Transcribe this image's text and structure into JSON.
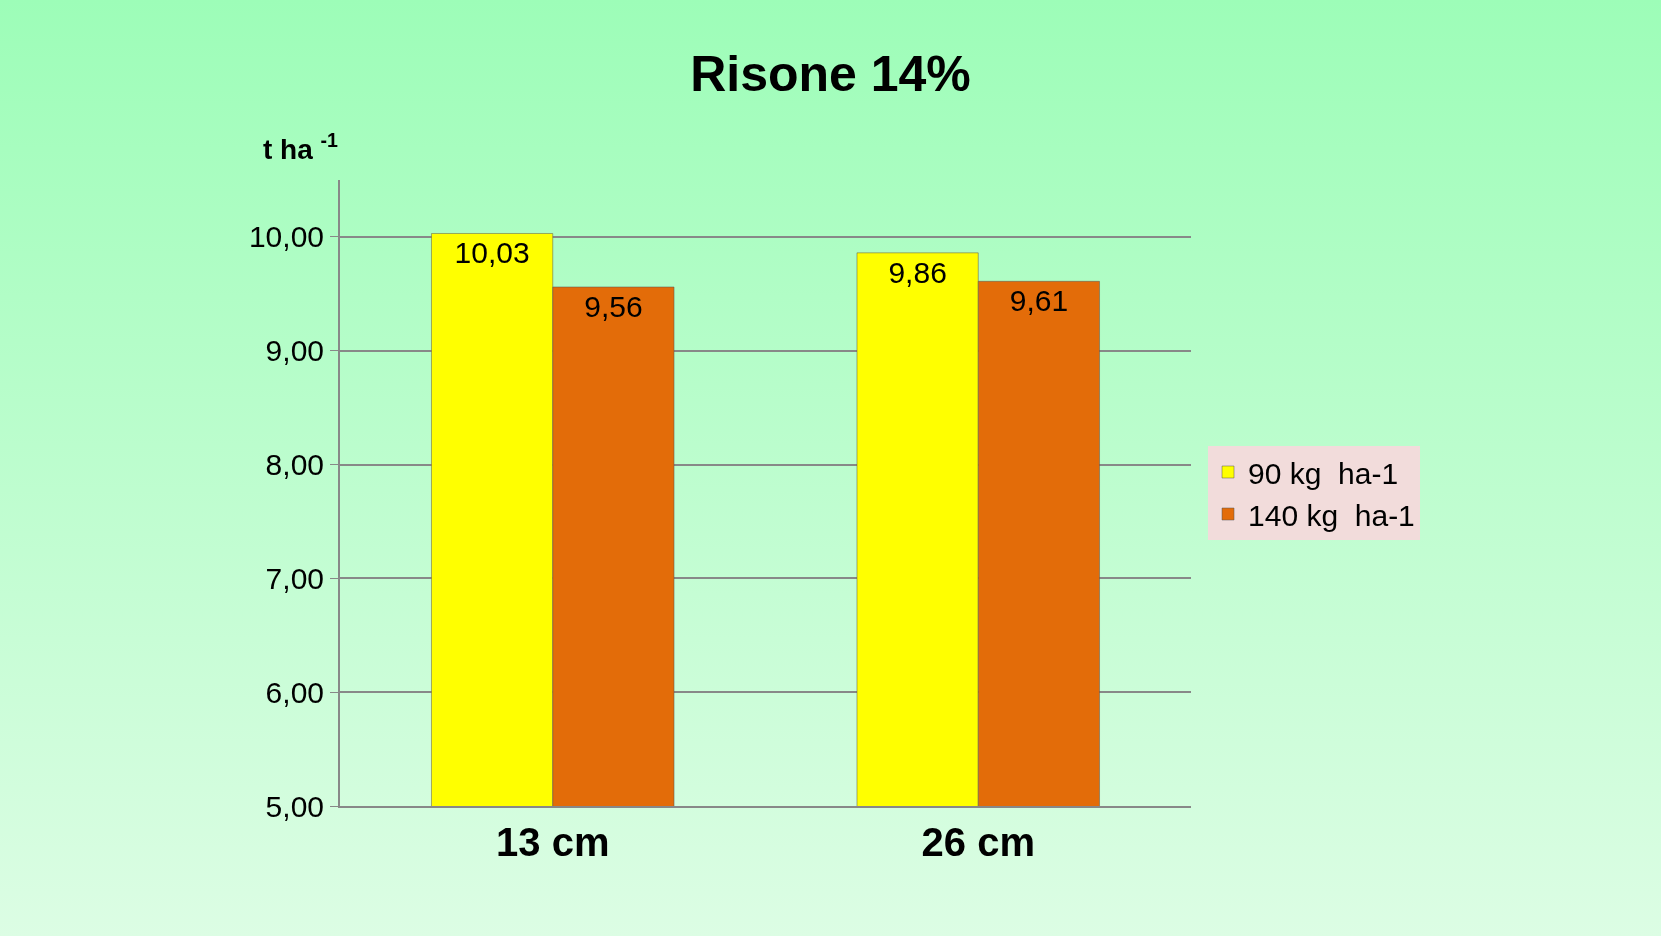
{
  "chart_data": {
    "type": "bar",
    "title": "Risone 14%",
    "ylabel": "t ha $^{-1}$",
    "categories": [
      "13 cm",
      "26 cm"
    ],
    "series": [
      {
        "name": "90 kg  ha-1",
        "color": "#ffff00",
        "values": [
          10.03,
          9.86
        ],
        "value_labels": [
          "10,03",
          "9,86"
        ]
      },
      {
        "name": "140 kg  ha-1",
        "color": "#e36c09",
        "values": [
          9.56,
          9.61
        ],
        "value_labels": [
          "9,56",
          "9,61"
        ]
      }
    ],
    "ylim": [
      5,
      10.5
    ],
    "yticks": [
      {
        "value": 5,
        "label": "5,00"
      },
      {
        "value": 6,
        "label": "6,00"
      },
      {
        "value": 7,
        "label": "7,00"
      },
      {
        "value": 8,
        "label": "8,00"
      },
      {
        "value": 9,
        "label": "9,00"
      },
      {
        "value": 10,
        "label": "10,00"
      }
    ],
    "grid": "y",
    "legend": "right"
  }
}
